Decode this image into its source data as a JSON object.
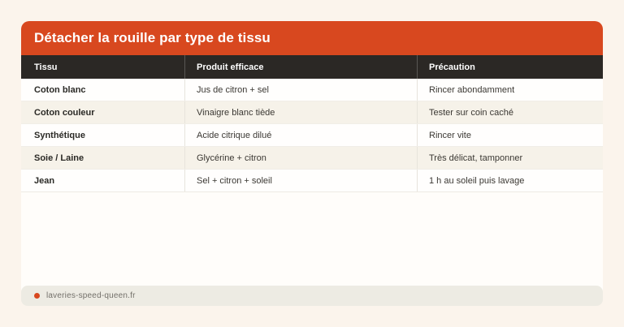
{
  "page": {
    "title": "Détacher la rouille par type de tissu"
  },
  "table": {
    "columns": [
      "Tissu",
      "Produit efficace",
      "Précaution"
    ],
    "rows": [
      [
        "Coton blanc",
        "Jus de citron + sel",
        "Rincer abondamment"
      ],
      [
        "Coton couleur",
        "Vinaigre blanc tiède",
        "Tester sur coin caché"
      ],
      [
        "Synthétique",
        "Acide citrique dilué",
        "Rincer vite"
      ],
      [
        "Soie / Laine",
        "Glycérine + citron",
        "Très délicat, tamponner"
      ],
      [
        "Jean",
        "Sel + citron + soleil",
        "1 h au soleil puis lavage"
      ]
    ]
  },
  "footer": {
    "source": "laveries-speed-queen.fr",
    "dot_icon": "orange-dot"
  },
  "colors": {
    "accent_orange": "#d8481f",
    "header_dark": "#2b2825",
    "row_alt_beige": "#f6f2e9",
    "page_background": "#fbf4ec",
    "card_background": "#fffdfa",
    "footer_background": "#edebe3"
  }
}
